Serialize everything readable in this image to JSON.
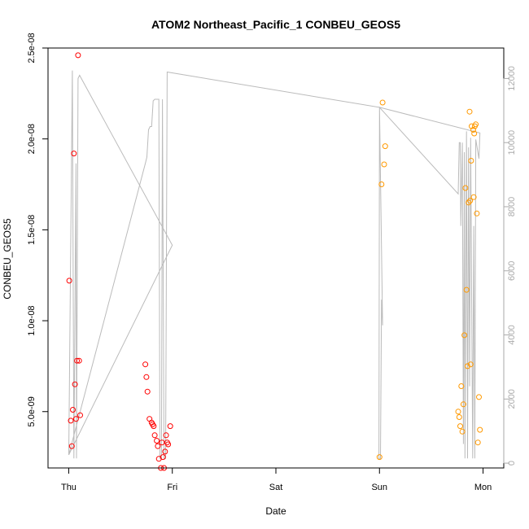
{
  "chart_data": {
    "type": "scatter",
    "title": "ATOM2 Northeast_Pacific_1 CONBEU_GEOS5",
    "xlabel": "Date",
    "ylabel": "CONBEU_GEOS5",
    "x_ticks": [
      {
        "label": "Thu",
        "value": 0
      },
      {
        "label": "Fri",
        "value": 1
      },
      {
        "label": "Sat",
        "value": 2
      },
      {
        "label": "Sun",
        "value": 3
      },
      {
        "label": "Mon",
        "value": 4
      }
    ],
    "y_ticks": [
      {
        "label": "5.0e-09",
        "value": 5e-09
      },
      {
        "label": "1.0e-08",
        "value": 1e-08
      },
      {
        "label": "1.5e-08",
        "value": 1.5e-08
      },
      {
        "label": "2.0e-08",
        "value": 2e-08
      },
      {
        "label": "2.5e-08",
        "value": 2.5e-08
      }
    ],
    "y2_ticks": [
      {
        "label": "0",
        "value": 0
      },
      {
        "label": "2000",
        "value": 2000
      },
      {
        "label": "4000",
        "value": 4000
      },
      {
        "label": "6000",
        "value": 6000
      },
      {
        "label": "8000",
        "value": 8000
      },
      {
        "label": "10000",
        "value": 10000
      },
      {
        "label": "12000",
        "value": 12000
      }
    ],
    "xlim": [
      -0.2,
      4.2
    ],
    "ylim": [
      1.9e-09,
      2.5e-08
    ],
    "y2lim": [
      -150,
      12950
    ],
    "grid": false,
    "series": [
      {
        "color": "#ff0000",
        "points": [
          [
            0.005,
            1.22e-08
          ],
          [
            0.02,
            4.5e-09
          ],
          [
            0.03,
            3.1e-09
          ],
          [
            0.04,
            5.1e-09
          ],
          [
            0.05,
            1.92e-08
          ],
          [
            0.06,
            6.5e-09
          ],
          [
            0.07,
            4.6e-09
          ],
          [
            0.08,
            7.8e-09
          ],
          [
            0.09,
            2.46e-08
          ],
          [
            0.1,
            7.8e-09
          ],
          [
            0.11,
            4.8e-09
          ],
          [
            0.74,
            7.6e-09
          ],
          [
            0.75,
            6.9e-09
          ],
          [
            0.76,
            6.1e-09
          ],
          [
            0.78,
            4.6e-09
          ],
          [
            0.8,
            4.4e-09
          ],
          [
            0.81,
            4.3e-09
          ],
          [
            0.82,
            4.2e-09
          ],
          [
            0.83,
            3.7e-09
          ],
          [
            0.85,
            3.4e-09
          ],
          [
            0.86,
            3.1e-09
          ],
          [
            0.87,
            2.4e-09
          ],
          [
            0.89,
            1.9e-09
          ],
          [
            0.9,
            3.3e-09
          ],
          [
            0.91,
            2.5e-09
          ],
          [
            0.92,
            1.9e-09
          ],
          [
            0.93,
            2.8e-09
          ],
          [
            0.94,
            3.7e-09
          ],
          [
            0.95,
            3.3e-09
          ],
          [
            0.96,
            3.2e-09
          ],
          [
            0.98,
            4.2e-09
          ]
        ]
      },
      {
        "color": "#ff9900",
        "points": [
          [
            3.0,
            2.5e-09
          ],
          [
            3.02,
            1.75e-08
          ],
          [
            3.03,
            2.2e-08
          ],
          [
            3.045,
            1.86e-08
          ],
          [
            3.055,
            1.96e-08
          ],
          [
            3.76,
            5e-09
          ],
          [
            3.77,
            4.7e-09
          ],
          [
            3.78,
            4.2e-09
          ],
          [
            3.79,
            6.4e-09
          ],
          [
            3.8,
            3.9e-09
          ],
          [
            3.81,
            5.4e-09
          ],
          [
            3.82,
            9.2e-09
          ],
          [
            3.83,
            1.73e-08
          ],
          [
            3.84,
            1.17e-08
          ],
          [
            3.85,
            7.5e-09
          ],
          [
            3.86,
            1.65e-08
          ],
          [
            3.87,
            2.15e-08
          ],
          [
            3.875,
            1.66e-08
          ],
          [
            3.88,
            7.6e-09
          ],
          [
            3.885,
            1.88e-08
          ],
          [
            3.89,
            2.07e-08
          ],
          [
            3.905,
            2.05e-08
          ],
          [
            3.91,
            1.68e-08
          ],
          [
            3.915,
            2.03e-08
          ],
          [
            3.92,
            2.07e-08
          ],
          [
            3.93,
            2.08e-08
          ],
          [
            3.94,
            1.59e-08
          ],
          [
            3.95,
            3.3e-09
          ],
          [
            3.96,
            5.8e-09
          ],
          [
            3.97,
            4e-09
          ]
        ]
      }
    ],
    "secondary_line": {
      "color": "#bbbbbb",
      "points": [
        [
          0.0,
          260
        ],
        [
          0.035,
          12250
        ],
        [
          0.05,
          150
        ],
        [
          0.07,
          9350
        ],
        [
          0.075,
          150
        ],
        [
          0.09,
          12000
        ],
        [
          0.105,
          12100
        ],
        [
          1.0,
          6800
        ],
        [
          0.0,
          260
        ],
        [
          0.74,
          9350
        ],
        [
          0.755,
          9550
        ],
        [
          0.77,
          10400
        ],
        [
          0.785,
          10500
        ],
        [
          0.8,
          10500
        ],
        [
          0.815,
          11300
        ],
        [
          0.83,
          11350
        ],
        [
          0.85,
          11350
        ],
        [
          0.87,
          11350
        ],
        [
          0.88,
          150
        ],
        [
          0.895,
          150
        ],
        [
          0.905,
          11350
        ],
        [
          0.92,
          150
        ],
        [
          0.935,
          150
        ],
        [
          0.95,
          12200
        ],
        [
          3.0,
          11100
        ],
        [
          2.995,
          150
        ],
        [
          3.01,
          150
        ],
        [
          3.02,
          5100
        ],
        [
          3.03,
          4300
        ],
        [
          3.0,
          11100
        ],
        [
          3.76,
          8400
        ],
        [
          3.77,
          10000
        ],
        [
          3.78,
          10000
        ],
        [
          3.785,
          7400
        ],
        [
          3.8,
          10000
        ],
        [
          3.81,
          600
        ],
        [
          3.82,
          9700
        ],
        [
          3.825,
          150
        ],
        [
          3.84,
          10350
        ],
        [
          3.85,
          150
        ],
        [
          3.86,
          9850
        ],
        [
          3.87,
          2400
        ],
        [
          3.88,
          10150
        ],
        [
          3.9,
          150
        ],
        [
          3.91,
          7400
        ],
        [
          3.92,
          150
        ],
        [
          3.93,
          10100
        ],
        [
          3.96,
          9500
        ],
        [
          3.97,
          10300
        ],
        [
          3.0,
          11100
        ]
      ]
    }
  }
}
